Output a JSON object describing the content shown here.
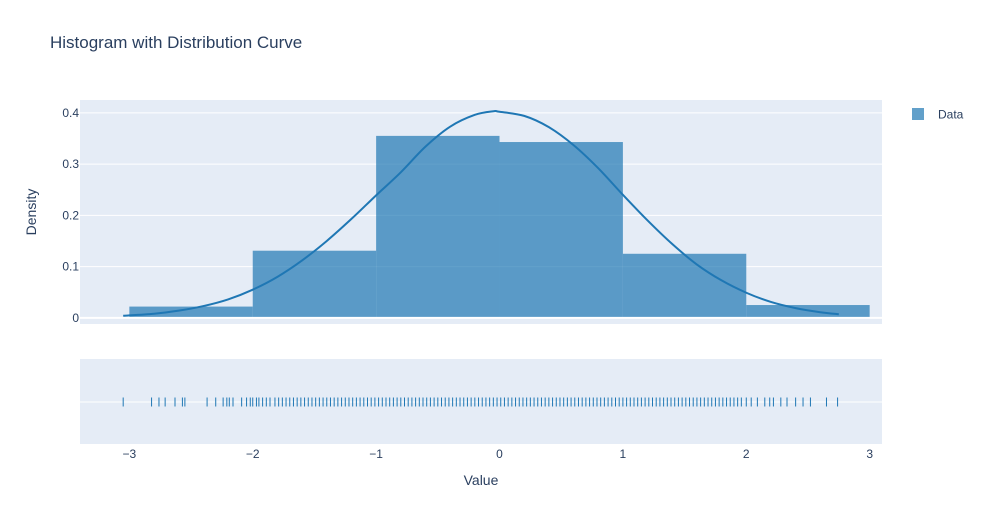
{
  "chart_data": {
    "type": "histogram",
    "title": "Histogram with Distribution Curve",
    "xlabel": "Value",
    "ylabel": "Density",
    "xlim": [
      -3.4,
      3.1
    ],
    "ylim": [
      -0.012,
      0.425
    ],
    "x_ticks": [
      -3,
      -2,
      -1,
      0,
      1,
      2,
      3
    ],
    "x_tick_labels": [
      "−3",
      "−2",
      "−1",
      "0",
      "1",
      "2",
      "3"
    ],
    "y_ticks": [
      0,
      0.1,
      0.2,
      0.3,
      0.4
    ],
    "y_tick_labels": [
      "0",
      "0.1",
      "0.2",
      "0.3",
      "0.4"
    ],
    "grid": true,
    "legend_position": "top-right",
    "colors": {
      "bars": "#1f77b4",
      "curve": "#1f77b4",
      "plot_bg": "#e5ecf6",
      "grid": "#ffffff"
    },
    "series": [
      {
        "name": "Data",
        "kind": "histogram",
        "bins": [
          {
            "x0": -3.0,
            "x1": -2.0,
            "density": 0.022
          },
          {
            "x0": -2.0,
            "x1": -1.0,
            "density": 0.131
          },
          {
            "x0": -1.0,
            "x1": 0.0,
            "density": 0.355
          },
          {
            "x0": 0.0,
            "x1": 1.0,
            "density": 0.343
          },
          {
            "x0": 1.0,
            "x1": 2.0,
            "density": 0.125
          },
          {
            "x0": 2.0,
            "x1": 3.0,
            "density": 0.025
          }
        ]
      },
      {
        "kind": "curve",
        "x": [
          -3.05,
          -2.8,
          -2.6,
          -2.4,
          -2.2,
          -2.0,
          -1.8,
          -1.6,
          -1.4,
          -1.2,
          -1.0,
          -0.8,
          -0.6,
          -0.4,
          -0.2,
          -0.05,
          0.0,
          0.2,
          0.4,
          0.6,
          0.8,
          1.0,
          1.2,
          1.4,
          1.6,
          1.8,
          2.0,
          2.2,
          2.4,
          2.6,
          2.75
        ],
        "y": [
          0.004,
          0.008,
          0.014,
          0.023,
          0.036,
          0.055,
          0.08,
          0.112,
          0.15,
          0.193,
          0.239,
          0.284,
          0.334,
          0.373,
          0.396,
          0.403,
          0.402,
          0.394,
          0.372,
          0.337,
          0.292,
          0.24,
          0.19,
          0.144,
          0.104,
          0.073,
          0.049,
          0.031,
          0.019,
          0.011,
          0.007
        ]
      },
      {
        "kind": "rug",
        "x": [
          -3.05,
          -2.82,
          -2.76,
          -2.71,
          -2.63,
          -2.57,
          -2.55,
          -2.37,
          -2.3,
          -2.24,
          -2.21,
          -2.19,
          -2.16,
          -2.09,
          -2.05,
          -2.02,
          -2.0,
          -1.97,
          -1.95,
          -1.92,
          -1.89,
          -1.86,
          -1.82,
          -1.79,
          -1.76,
          -1.73,
          -1.7,
          -1.67,
          -1.64,
          -1.61,
          -1.58,
          -1.55,
          -1.52,
          -1.49,
          -1.46,
          -1.43,
          -1.4,
          -1.37,
          -1.34,
          -1.31,
          -1.28,
          -1.25,
          -1.22,
          -1.19,
          -1.16,
          -1.13,
          -1.1,
          -1.07,
          -1.04,
          -1.01,
          -0.98,
          -0.95,
          -0.92,
          -0.89,
          -0.86,
          -0.83,
          -0.8,
          -0.77,
          -0.74,
          -0.71,
          -0.68,
          -0.65,
          -0.62,
          -0.59,
          -0.56,
          -0.53,
          -0.5,
          -0.47,
          -0.44,
          -0.41,
          -0.38,
          -0.35,
          -0.32,
          -0.29,
          -0.26,
          -0.23,
          -0.2,
          -0.17,
          -0.14,
          -0.11,
          -0.08,
          -0.05,
          -0.02,
          0.01,
          0.04,
          0.07,
          0.1,
          0.13,
          0.16,
          0.19,
          0.22,
          0.25,
          0.28,
          0.31,
          0.34,
          0.37,
          0.4,
          0.43,
          0.46,
          0.49,
          0.52,
          0.55,
          0.58,
          0.61,
          0.64,
          0.67,
          0.7,
          0.73,
          0.76,
          0.79,
          0.82,
          0.85,
          0.88,
          0.91,
          0.94,
          0.97,
          1.0,
          1.03,
          1.06,
          1.09,
          1.12,
          1.15,
          1.18,
          1.21,
          1.24,
          1.27,
          1.3,
          1.33,
          1.36,
          1.39,
          1.42,
          1.45,
          1.48,
          1.51,
          1.54,
          1.57,
          1.6,
          1.63,
          1.66,
          1.69,
          1.72,
          1.75,
          1.78,
          1.81,
          1.84,
          1.87,
          1.9,
          1.93,
          1.96,
          2.0,
          2.04,
          2.09,
          2.15,
          2.19,
          2.22,
          2.28,
          2.33,
          2.4,
          2.46,
          2.52,
          2.65,
          2.74
        ]
      }
    ]
  }
}
